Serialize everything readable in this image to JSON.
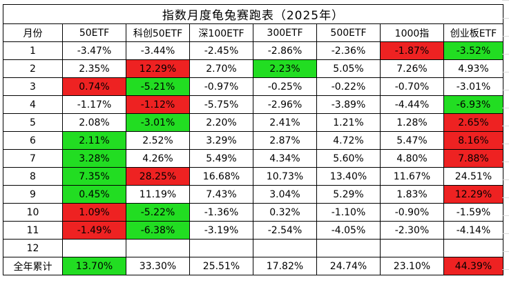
{
  "title": "指数月度龟兔赛跑表（2025年）",
  "header": [
    "月份",
    "50ETF",
    "科创50ETF",
    "深100ETF",
    "300ETF",
    "500ETF",
    "1000指",
    "创业板ETF"
  ],
  "colors": {
    "green": "#22dd22",
    "red": "#ee2222"
  },
  "rows": [
    {
      "month": "1",
      "cells": [
        {
          "v": "-3.47%",
          "c": ""
        },
        {
          "v": "-3.44%",
          "c": ""
        },
        {
          "v": "-2.45%",
          "c": ""
        },
        {
          "v": "-2.86%",
          "c": ""
        },
        {
          "v": "-2.36%",
          "c": ""
        },
        {
          "v": "-1.87%",
          "c": "red"
        },
        {
          "v": "-3.52%",
          "c": "green"
        }
      ]
    },
    {
      "month": "2",
      "cells": [
        {
          "v": "2.35%",
          "c": ""
        },
        {
          "v": "12.29%",
          "c": "red"
        },
        {
          "v": "2.70%",
          "c": ""
        },
        {
          "v": "2.23%",
          "c": "green"
        },
        {
          "v": "5.05%",
          "c": ""
        },
        {
          "v": "7.26%",
          "c": ""
        },
        {
          "v": "4.93%",
          "c": ""
        }
      ]
    },
    {
      "month": "3",
      "cells": [
        {
          "v": "0.74%",
          "c": "red"
        },
        {
          "v": "-5.21%",
          "c": "green"
        },
        {
          "v": "-0.97%",
          "c": ""
        },
        {
          "v": "-0.25%",
          "c": ""
        },
        {
          "v": "-0.22%",
          "c": ""
        },
        {
          "v": "-0.70%",
          "c": ""
        },
        {
          "v": "-3.01%",
          "c": ""
        }
      ]
    },
    {
      "month": "4",
      "cells": [
        {
          "v": "-1.17%",
          "c": ""
        },
        {
          "v": "-1.12%",
          "c": "red"
        },
        {
          "v": "-5.75%",
          "c": ""
        },
        {
          "v": "-2.96%",
          "c": ""
        },
        {
          "v": "-3.89%",
          "c": ""
        },
        {
          "v": "-4.44%",
          "c": ""
        },
        {
          "v": "-6.93%",
          "c": "green"
        }
      ]
    },
    {
      "month": "5",
      "cells": [
        {
          "v": "2.08%",
          "c": ""
        },
        {
          "v": "-3.01%",
          "c": "green"
        },
        {
          "v": "2.20%",
          "c": ""
        },
        {
          "v": "2.41%",
          "c": ""
        },
        {
          "v": "1.21%",
          "c": ""
        },
        {
          "v": "1.28%",
          "c": ""
        },
        {
          "v": "2.65%",
          "c": "red"
        }
      ]
    },
    {
      "month": "6",
      "cells": [
        {
          "v": "2.11%",
          "c": "green"
        },
        {
          "v": "2.52%",
          "c": ""
        },
        {
          "v": "3.29%",
          "c": ""
        },
        {
          "v": "2.87%",
          "c": ""
        },
        {
          "v": "4.72%",
          "c": ""
        },
        {
          "v": "5.47%",
          "c": ""
        },
        {
          "v": "8.16%",
          "c": "red"
        }
      ]
    },
    {
      "month": "7",
      "cells": [
        {
          "v": "3.28%",
          "c": "green"
        },
        {
          "v": "4.26%",
          "c": ""
        },
        {
          "v": "5.49%",
          "c": ""
        },
        {
          "v": "4.34%",
          "c": ""
        },
        {
          "v": "5.60%",
          "c": ""
        },
        {
          "v": "4.80%",
          "c": ""
        },
        {
          "v": "7.88%",
          "c": "red"
        }
      ]
    },
    {
      "month": "8",
      "cells": [
        {
          "v": "7.35%",
          "c": "green"
        },
        {
          "v": "28.25%",
          "c": "red"
        },
        {
          "v": "16.68%",
          "c": ""
        },
        {
          "v": "10.73%",
          "c": ""
        },
        {
          "v": "13.40%",
          "c": ""
        },
        {
          "v": "11.67%",
          "c": ""
        },
        {
          "v": "24.51%",
          "c": ""
        }
      ]
    },
    {
      "month": "9",
      "cells": [
        {
          "v": "0.45%",
          "c": "green"
        },
        {
          "v": "11.19%",
          "c": ""
        },
        {
          "v": "7.43%",
          "c": ""
        },
        {
          "v": "3.04%",
          "c": ""
        },
        {
          "v": "5.29%",
          "c": ""
        },
        {
          "v": "1.83%",
          "c": ""
        },
        {
          "v": "12.29%",
          "c": "red"
        }
      ]
    },
    {
      "month": "10",
      "cells": [
        {
          "v": "1.09%",
          "c": "red"
        },
        {
          "v": "-5.22%",
          "c": "green"
        },
        {
          "v": "-1.36%",
          "c": ""
        },
        {
          "v": "0.32%",
          "c": ""
        },
        {
          "v": "-1.10%",
          "c": ""
        },
        {
          "v": "-0.90%",
          "c": ""
        },
        {
          "v": "-1.59%",
          "c": ""
        }
      ]
    },
    {
      "month": "11",
      "cells": [
        {
          "v": "-1.49%",
          "c": "red"
        },
        {
          "v": "-6.38%",
          "c": "green"
        },
        {
          "v": "-3.19%",
          "c": ""
        },
        {
          "v": "-2.54%",
          "c": ""
        },
        {
          "v": "-4.05%",
          "c": ""
        },
        {
          "v": "-2.30%",
          "c": ""
        },
        {
          "v": "-4.14%",
          "c": ""
        }
      ]
    },
    {
      "month": "12",
      "cells": [
        {
          "v": "",
          "c": ""
        },
        {
          "v": "",
          "c": ""
        },
        {
          "v": "",
          "c": ""
        },
        {
          "v": "",
          "c": ""
        },
        {
          "v": "",
          "c": ""
        },
        {
          "v": "",
          "c": ""
        },
        {
          "v": "",
          "c": ""
        }
      ]
    },
    {
      "month": "全年累计",
      "cells": [
        {
          "v": "13.70%",
          "c": "green"
        },
        {
          "v": "33.30%",
          "c": ""
        },
        {
          "v": "25.51%",
          "c": ""
        },
        {
          "v": "17.82%",
          "c": ""
        },
        {
          "v": "24.74%",
          "c": ""
        },
        {
          "v": "23.10%",
          "c": ""
        },
        {
          "v": "44.39%",
          "c": "red"
        }
      ]
    }
  ]
}
